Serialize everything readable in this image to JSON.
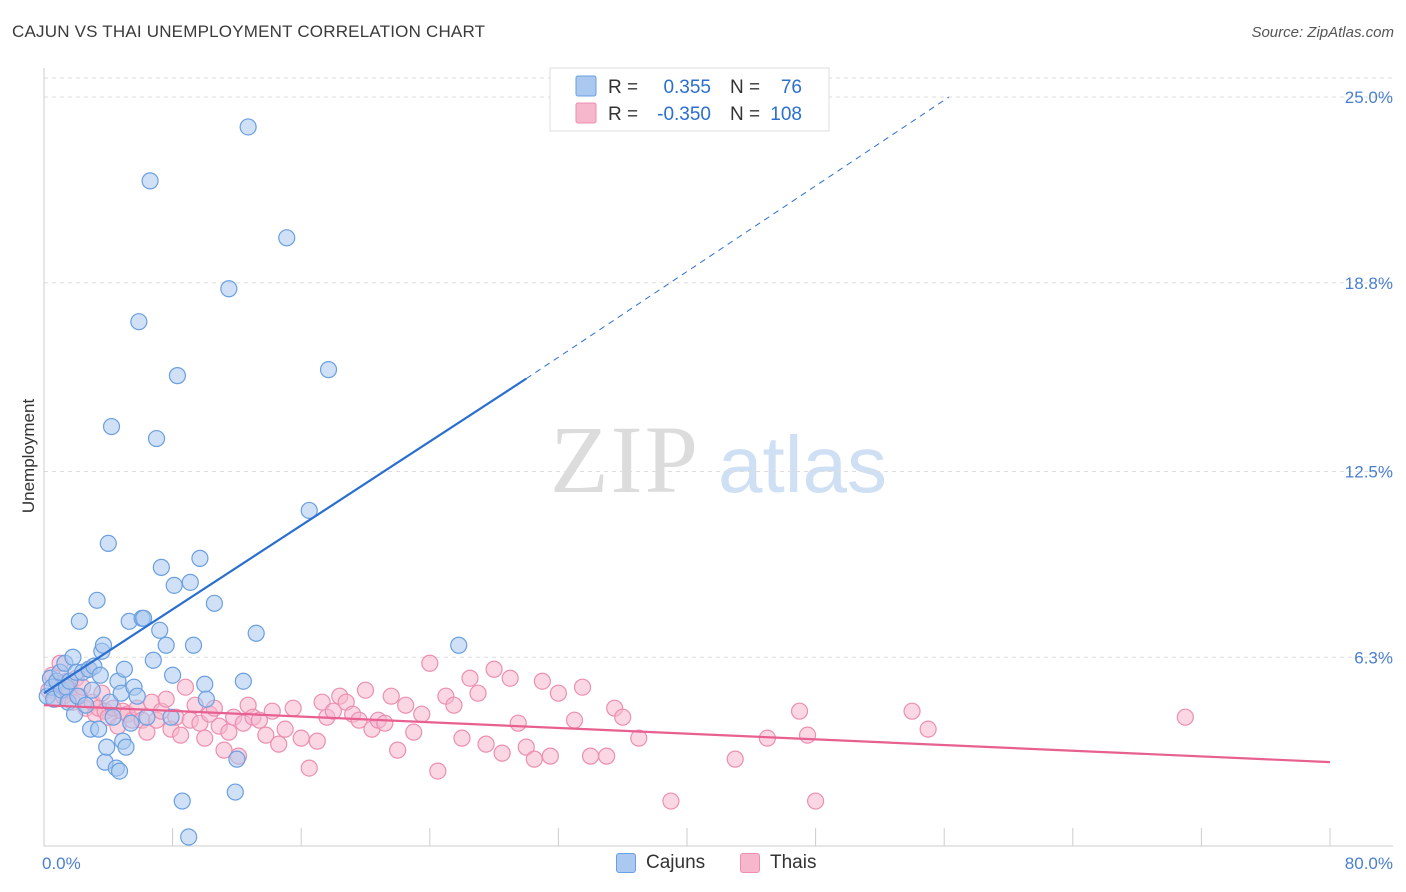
{
  "title": "CAJUN VS THAI UNEMPLOYMENT CORRELATION CHART",
  "source": "Source: ZipAtlas.com",
  "watermark": {
    "zip": "ZIP",
    "atlas": "atlas"
  },
  "colors": {
    "blue_fill": "#aac8f0",
    "blue_stroke": "#6a9fe0",
    "blue_line": "#2a6fcf",
    "pink_fill": "#f6b6cc",
    "pink_stroke": "#ec8fb0",
    "pink_line": "#e8608f",
    "axis_text": "#4a7fd0",
    "grid": "#dddddd"
  },
  "legend": {
    "rows": [
      {
        "r_label": "R =",
        "r_value": "0.355",
        "n_label": "N =",
        "n_value": "76"
      },
      {
        "r_label": "R =",
        "r_value": "-0.350",
        "n_label": "N =",
        "n_value": "108"
      }
    ]
  },
  "bottom_legend": {
    "cajuns": "Cajuns",
    "thais": "Thais"
  },
  "chart_data": {
    "type": "scatter",
    "title": "CAJUN VS THAI UNEMPLOYMENT CORRELATION CHART",
    "xlabel": "",
    "ylabel": "Unemployment",
    "xlim": [
      0,
      80
    ],
    "ylim": [
      0,
      26.3
    ],
    "x_tick_labels": [
      "0.0%",
      "80.0%"
    ],
    "y_ticks": [
      6.3,
      12.5,
      18.8,
      25.0
    ],
    "y_tick_labels": [
      "6.3%",
      "12.5%",
      "18.8%",
      "25.0%"
    ],
    "grid": "horizontal dashed",
    "legend_position": "top-center",
    "series": [
      {
        "name": "Cajuns",
        "r": 0.355,
        "n": 76,
        "trend": {
          "x0": 0,
          "y0": 5.1,
          "x1": 30,
          "y1": 15.6,
          "dashed_to_x": 56.3,
          "dashed_to_y": 25.0
        },
        "points": [
          [
            0.2,
            5.0
          ],
          [
            0.4,
            5.6
          ],
          [
            0.5,
            5.3
          ],
          [
            0.6,
            4.9
          ],
          [
            0.8,
            5.5
          ],
          [
            1.0,
            5.8
          ],
          [
            1.1,
            5.2
          ],
          [
            1.3,
            6.1
          ],
          [
            1.4,
            5.3
          ],
          [
            1.5,
            4.8
          ],
          [
            1.6,
            5.5
          ],
          [
            1.8,
            6.3
          ],
          [
            1.9,
            4.4
          ],
          [
            2.0,
            5.8
          ],
          [
            2.1,
            5.0
          ],
          [
            2.2,
            7.5
          ],
          [
            2.4,
            5.8
          ],
          [
            2.6,
            4.7
          ],
          [
            2.8,
            5.9
          ],
          [
            2.9,
            3.9
          ],
          [
            3.0,
            5.2
          ],
          [
            3.1,
            6.0
          ],
          [
            3.3,
            8.2
          ],
          [
            3.4,
            3.9
          ],
          [
            3.5,
            5.7
          ],
          [
            3.6,
            6.5
          ],
          [
            3.7,
            6.7
          ],
          [
            3.8,
            2.8
          ],
          [
            3.9,
            3.3
          ],
          [
            4.0,
            10.1
          ],
          [
            4.1,
            4.8
          ],
          [
            4.2,
            14.0
          ],
          [
            4.3,
            4.3
          ],
          [
            4.5,
            2.6
          ],
          [
            4.6,
            5.5
          ],
          [
            4.7,
            2.5
          ],
          [
            4.8,
            5.1
          ],
          [
            4.9,
            3.5
          ],
          [
            5.0,
            5.9
          ],
          [
            5.1,
            3.3
          ],
          [
            5.3,
            7.5
          ],
          [
            5.4,
            4.1
          ],
          [
            5.6,
            5.3
          ],
          [
            5.8,
            5.0
          ],
          [
            5.9,
            17.5
          ],
          [
            6.1,
            7.6
          ],
          [
            6.2,
            7.6
          ],
          [
            6.4,
            4.3
          ],
          [
            6.6,
            22.2
          ],
          [
            6.8,
            6.2
          ],
          [
            7.0,
            13.6
          ],
          [
            7.2,
            7.2
          ],
          [
            7.3,
            9.3
          ],
          [
            7.6,
            6.7
          ],
          [
            7.9,
            4.3
          ],
          [
            8.0,
            5.7
          ],
          [
            8.1,
            8.7
          ],
          [
            8.3,
            15.7
          ],
          [
            8.6,
            1.5
          ],
          [
            9.0,
            0.3
          ],
          [
            9.1,
            8.8
          ],
          [
            9.3,
            6.7
          ],
          [
            9.7,
            9.6
          ],
          [
            10.0,
            5.4
          ],
          [
            10.1,
            4.9
          ],
          [
            10.6,
            8.1
          ],
          [
            11.5,
            18.6
          ],
          [
            11.9,
            1.8
          ],
          [
            12.0,
            2.9
          ],
          [
            12.4,
            5.5
          ],
          [
            12.7,
            24.0
          ],
          [
            13.2,
            7.1
          ],
          [
            15.1,
            20.3
          ],
          [
            16.5,
            11.2
          ],
          [
            17.7,
            15.9
          ],
          [
            25.8,
            6.7
          ]
        ]
      },
      {
        "name": "Thais",
        "r": -0.35,
        "n": 108,
        "trend": {
          "x0": 0,
          "y0": 4.7,
          "x1": 80,
          "y1": 2.8
        },
        "points": [
          [
            0.3,
            5.2
          ],
          [
            0.5,
            5.7
          ],
          [
            0.7,
            4.9
          ],
          [
            0.9,
            5.4
          ],
          [
            1.0,
            6.1
          ],
          [
            1.2,
            5.0
          ],
          [
            1.4,
            5.5
          ],
          [
            1.6,
            5.2
          ],
          [
            1.8,
            4.8
          ],
          [
            2.0,
            5.6
          ],
          [
            2.2,
            5.0
          ],
          [
            2.4,
            5.3
          ],
          [
            2.6,
            4.6
          ],
          [
            2.8,
            5.9
          ],
          [
            3.0,
            4.8
          ],
          [
            3.2,
            4.4
          ],
          [
            3.4,
            4.6
          ],
          [
            3.6,
            5.1
          ],
          [
            3.8,
            4.5
          ],
          [
            4.0,
            4.3
          ],
          [
            4.3,
            4.6
          ],
          [
            4.6,
            4.0
          ],
          [
            4.9,
            4.5
          ],
          [
            5.2,
            4.4
          ],
          [
            5.5,
            4.2
          ],
          [
            5.8,
            4.6
          ],
          [
            6.1,
            4.2
          ],
          [
            6.4,
            3.8
          ],
          [
            6.7,
            4.8
          ],
          [
            7.0,
            4.2
          ],
          [
            7.3,
            4.5
          ],
          [
            7.6,
            4.9
          ],
          [
            7.9,
            3.9
          ],
          [
            8.2,
            4.3
          ],
          [
            8.5,
            3.7
          ],
          [
            8.8,
            5.3
          ],
          [
            9.1,
            4.2
          ],
          [
            9.4,
            4.7
          ],
          [
            9.7,
            4.1
          ],
          [
            10.0,
            3.6
          ],
          [
            10.3,
            4.4
          ],
          [
            10.6,
            4.6
          ],
          [
            10.9,
            4.0
          ],
          [
            11.2,
            3.2
          ],
          [
            11.5,
            3.8
          ],
          [
            11.8,
            4.3
          ],
          [
            12.1,
            3.0
          ],
          [
            12.4,
            4.1
          ],
          [
            12.7,
            4.7
          ],
          [
            13.0,
            4.3
          ],
          [
            13.4,
            4.2
          ],
          [
            13.8,
            3.7
          ],
          [
            14.2,
            4.5
          ],
          [
            14.6,
            3.4
          ],
          [
            15.0,
            3.9
          ],
          [
            15.5,
            4.6
          ],
          [
            16.0,
            3.6
          ],
          [
            16.5,
            2.6
          ],
          [
            17.0,
            3.5
          ],
          [
            17.3,
            4.8
          ],
          [
            17.6,
            4.3
          ],
          [
            18.0,
            4.5
          ],
          [
            18.4,
            5.0
          ],
          [
            18.8,
            4.8
          ],
          [
            19.2,
            4.4
          ],
          [
            19.6,
            4.2
          ],
          [
            20.0,
            5.2
          ],
          [
            20.4,
            3.9
          ],
          [
            20.8,
            4.2
          ],
          [
            21.2,
            4.1
          ],
          [
            21.6,
            5.0
          ],
          [
            22.0,
            3.2
          ],
          [
            22.5,
            4.7
          ],
          [
            23.0,
            3.8
          ],
          [
            23.5,
            4.4
          ],
          [
            24.0,
            6.1
          ],
          [
            24.5,
            2.5
          ],
          [
            25.0,
            5.0
          ],
          [
            25.5,
            4.7
          ],
          [
            26.0,
            3.6
          ],
          [
            26.5,
            5.6
          ],
          [
            27.0,
            5.1
          ],
          [
            27.5,
            3.4
          ],
          [
            28.0,
            5.9
          ],
          [
            28.5,
            3.1
          ],
          [
            29.0,
            5.6
          ],
          [
            29.5,
            4.1
          ],
          [
            30.0,
            3.3
          ],
          [
            30.5,
            2.9
          ],
          [
            31.0,
            5.5
          ],
          [
            31.5,
            3.0
          ],
          [
            32.0,
            5.1
          ],
          [
            33.0,
            4.2
          ],
          [
            33.5,
            5.3
          ],
          [
            34.0,
            3.0
          ],
          [
            35.0,
            3.0
          ],
          [
            35.5,
            4.6
          ],
          [
            36.0,
            4.3
          ],
          [
            37.0,
            3.6
          ],
          [
            39.0,
            1.5
          ],
          [
            43.0,
            2.9
          ],
          [
            45.0,
            3.6
          ],
          [
            47.0,
            4.5
          ],
          [
            47.5,
            3.7
          ],
          [
            48.0,
            1.5
          ],
          [
            54.0,
            4.5
          ],
          [
            55.0,
            3.9
          ],
          [
            71.0,
            4.3
          ]
        ]
      }
    ]
  }
}
